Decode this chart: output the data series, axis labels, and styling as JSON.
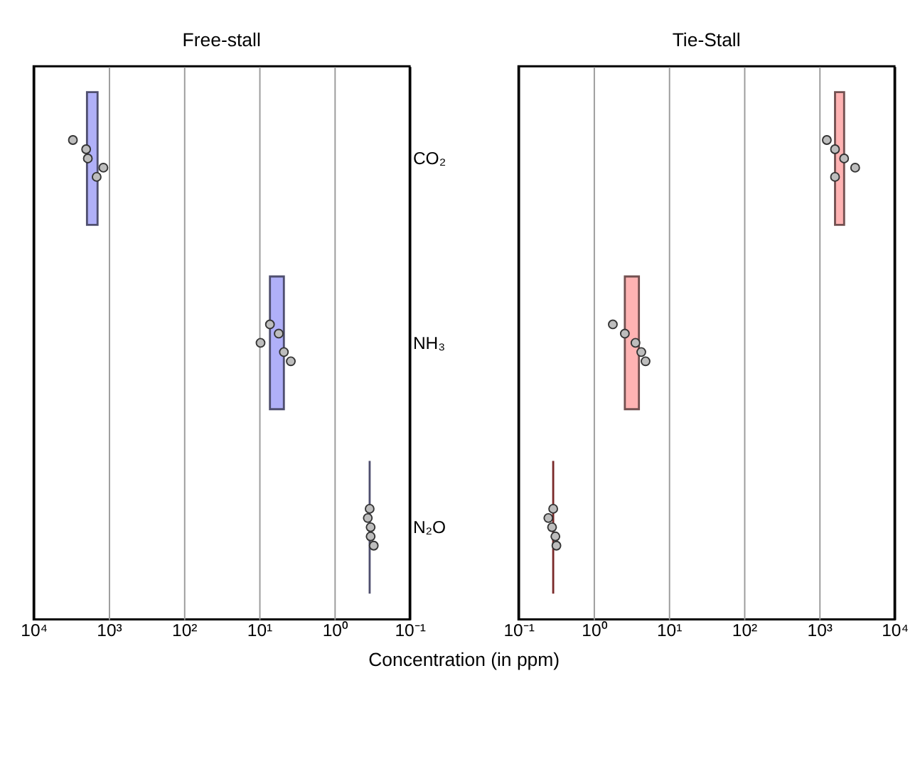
{
  "chart_data": [
    {
      "type": "bar",
      "orientation": "horizontal",
      "title": "Free-stall",
      "xlabel": "Concentration (in ppm)",
      "categories": [
        "CO₂",
        "NH₃",
        "N₂O"
      ],
      "log": "x",
      "grid": "x",
      "xlim": [
        10000,
        0.1
      ],
      "xticks": [
        {
          "value": 10000,
          "label": "10⁴"
        },
        {
          "value": 1000,
          "label": "10³"
        },
        {
          "value": 100,
          "label": "10²"
        },
        {
          "value": 10,
          "label": "10¹"
        },
        {
          "value": 1,
          "label": "10⁰"
        },
        {
          "value": 0.1,
          "label": "10⁻¹"
        }
      ],
      "series": [
        {
          "type": "bar",
          "colors": [
            "#b0b0f8",
            "#b0b0f8",
            "#4f4f6f"
          ],
          "base": [
            1410,
            4.7,
            0.34
          ],
          "values": [
            540,
            2.5,
            0
          ]
        },
        {
          "type": "scatter",
          "color": "#bdbdbd",
          "marker": "circle",
          "x": [
            "CO₂",
            "CO₂",
            "CO₂",
            "CO₂",
            "CO₂",
            "NH₃",
            "NH₃",
            "NH₃",
            "NH₃",
            "NH₃",
            "N₂O",
            "N₂O",
            "N₂O",
            "N₂O",
            "N₂O"
          ],
          "values": [
            3000,
            2000,
            1900,
            1180,
            1450,
            7.2,
            5.5,
            9.6,
            4.7,
            3.8,
            0.34,
            0.36,
            0.33,
            0.33,
            0.3
          ]
        }
      ]
    },
    {
      "type": "bar",
      "orientation": "horizontal",
      "title": "Tie-Stall",
      "categories": [
        "CO₂",
        "NH₃",
        "N₂O"
      ],
      "tick_labels": "x",
      "log": "x",
      "grid": "x",
      "xlim": [
        0.1,
        10000
      ],
      "xticks": [
        {
          "value": 0.1,
          "label": "10⁻¹"
        },
        {
          "value": 1,
          "label": "10⁰"
        },
        {
          "value": 10,
          "label": "10¹"
        },
        {
          "value": 100,
          "label": "10²"
        },
        {
          "value": 1000,
          "label": "10³"
        },
        {
          "value": 10000,
          "label": "10⁴"
        }
      ],
      "series": [
        {
          "type": "bar",
          "colors": [
            "#ffb3b3",
            "#ffb3b3",
            "#7a2a2a"
          ],
          "base": [
            1620,
            2.6,
            0.29
          ],
          "values": [
            520,
            1.4,
            0
          ]
        },
        {
          "type": "scatter",
          "color": "#bdbdbd",
          "marker": "circle",
          "x": [
            "CO₂",
            "CO₂",
            "CO₂",
            "CO₂",
            "CO₂",
            "NH₃",
            "NH₃",
            "NH₃",
            "NH₃",
            "NH₃",
            "N₂O",
            "N₂O",
            "N₂O",
            "N₂O",
            "N₂O"
          ],
          "values": [
            1260,
            1620,
            2140,
            3000,
            1620,
            1.8,
            2.6,
            3.6,
            4.3,
            4.9,
            0.29,
            0.25,
            0.28,
            0.31,
            0.32
          ]
        }
      ]
    }
  ]
}
